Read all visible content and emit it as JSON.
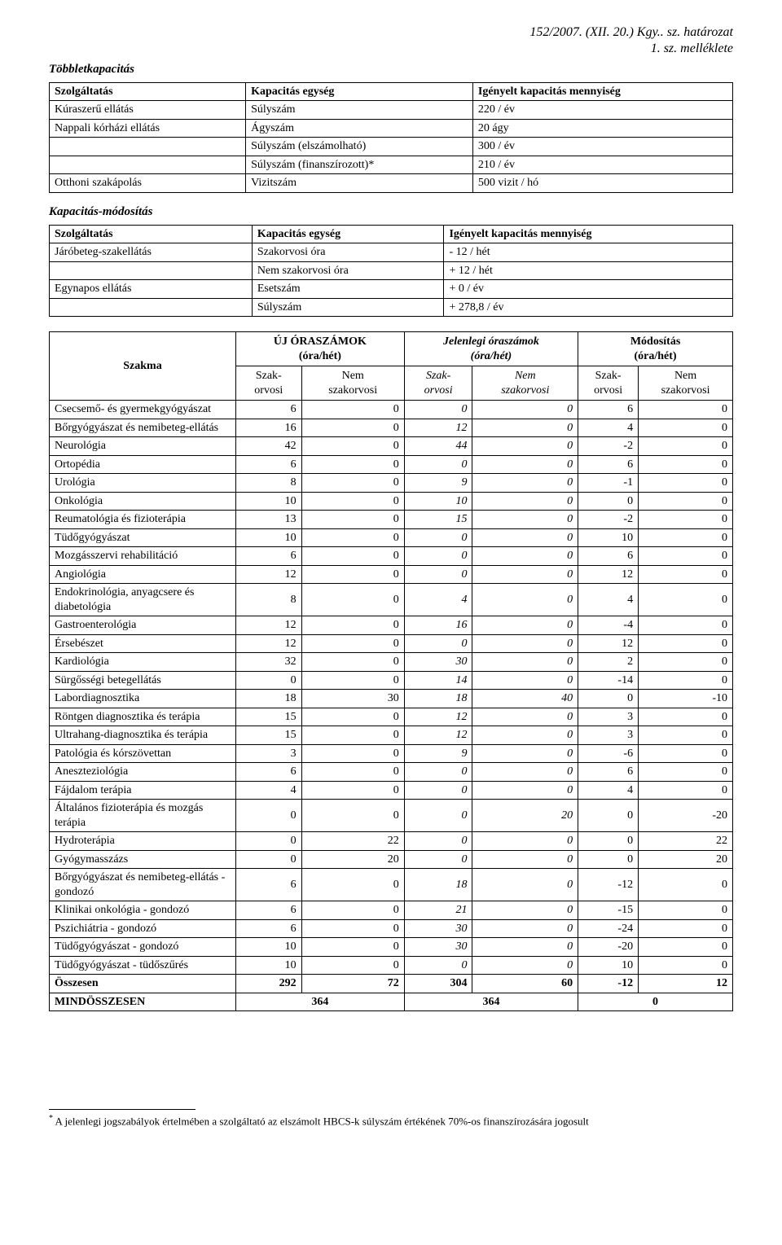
{
  "header": {
    "line1": "152/2007. (XII. 20.) Kgy.. sz. határozat",
    "line2": "1. sz. melléklete"
  },
  "sections": {
    "tobblet_title": "Többletkapacitás",
    "modositas_title": "Kapacitás-módosítás"
  },
  "table1": {
    "headers": [
      "Szolgáltatás",
      "Kapacitás egység",
      "Igényelt kapacitás mennyiség"
    ],
    "rows": [
      [
        "Kúraszerű ellátás",
        "Súlyszám",
        "220 / év"
      ],
      [
        "Nappali kórházi ellátás",
        "Ágyszám",
        "20 ágy"
      ],
      [
        "",
        "Súlyszám (elszámolható)",
        "300 / év"
      ],
      [
        "",
        "Súlyszám (finanszírozott)*",
        "210 / év"
      ],
      [
        "Otthoni szakápolás",
        "Vizitszám",
        "500 vizit / hó"
      ]
    ]
  },
  "table2": {
    "headers": [
      "Szolgáltatás",
      "Kapacitás egység",
      "Igényelt kapacitás mennyiség"
    ],
    "rows": [
      [
        "Járóbeteg-szakellátás",
        "Szakorvosi óra",
        "- 12 / hét"
      ],
      [
        "",
        "Nem szakorvosi óra",
        "+ 12 / hét"
      ],
      [
        "Egynapos ellátás",
        "Esetszám",
        "+ 0 / év"
      ],
      [
        "",
        "Súlyszám",
        "+ 278,8 / év"
      ]
    ]
  },
  "big_table": {
    "col_szakma": "Szakma",
    "group_uj": "ÚJ ÓRASZÁMOK\n(óra/hét)",
    "group_jelenlegi": "Jelenlegi óraszámok\n(óra/hét)",
    "group_mod": "Módosítás\n(óra/hét)",
    "sub_szak": "Szak-\norvosi",
    "sub_nem": "Nem\nszakorvosi",
    "sub_szak_i": "Szak-\norvosi",
    "sub_nem_i": "Nem\nszakorvosi",
    "rows": [
      {
        "n": "Csecsemő- és gyermekgyógyászat",
        "v": [
          6,
          0,
          0,
          0,
          6,
          0
        ]
      },
      {
        "n": "Bőrgyógyászat és nemibeteg-ellátás",
        "v": [
          16,
          0,
          12,
          0,
          4,
          0
        ]
      },
      {
        "n": "Neurológia",
        "v": [
          42,
          0,
          44,
          0,
          -2,
          0
        ]
      },
      {
        "n": "Ortopédia",
        "v": [
          6,
          0,
          0,
          0,
          6,
          0
        ]
      },
      {
        "n": "Urológia",
        "v": [
          8,
          0,
          9,
          0,
          -1,
          0
        ]
      },
      {
        "n": "Onkológia",
        "v": [
          10,
          0,
          10,
          0,
          0,
          0
        ]
      },
      {
        "n": "Reumatológia és fizioterápia",
        "v": [
          13,
          0,
          15,
          0,
          -2,
          0
        ]
      },
      {
        "n": "Tüdőgyógyászat",
        "v": [
          10,
          0,
          0,
          0,
          10,
          0
        ]
      },
      {
        "n": "Mozgásszervi rehabilitáció",
        "v": [
          6,
          0,
          0,
          0,
          6,
          0
        ]
      },
      {
        "n": "Angiológia",
        "v": [
          12,
          0,
          0,
          0,
          12,
          0
        ]
      },
      {
        "n": "Endokrinológia, anyagcsere és diabetológia",
        "v": [
          8,
          0,
          4,
          0,
          4,
          0
        ]
      },
      {
        "n": "Gastroenterológia",
        "v": [
          12,
          0,
          16,
          0,
          -4,
          0
        ]
      },
      {
        "n": "Érsebészet",
        "v": [
          12,
          0,
          0,
          0,
          12,
          0
        ]
      },
      {
        "n": "Kardiológia",
        "v": [
          32,
          0,
          30,
          0,
          2,
          0
        ]
      },
      {
        "n": "Sürgősségi betegellátás",
        "v": [
          0,
          0,
          14,
          0,
          -14,
          0
        ]
      },
      {
        "n": "Labordiagnosztika",
        "v": [
          18,
          30,
          18,
          40,
          0,
          -10
        ]
      },
      {
        "n": "Röntgen diagnosztika és terápia",
        "v": [
          15,
          0,
          12,
          0,
          3,
          0
        ]
      },
      {
        "n": "Ultrahang-diagnosztika és terápia",
        "v": [
          15,
          0,
          12,
          0,
          3,
          0
        ]
      },
      {
        "n": "Patológia és kórszövettan",
        "v": [
          3,
          0,
          9,
          0,
          -6,
          0
        ]
      },
      {
        "n": "Aneszteziológia",
        "v": [
          6,
          0,
          0,
          0,
          6,
          0
        ]
      },
      {
        "n": "Fájdalom terápia",
        "v": [
          4,
          0,
          0,
          0,
          4,
          0
        ]
      },
      {
        "n": "Általános fizioterápia és mozgás terápia",
        "v": [
          0,
          0,
          0,
          20,
          0,
          -20
        ]
      },
      {
        "n": "Hydroterápia",
        "v": [
          0,
          22,
          0,
          0,
          0,
          22
        ]
      },
      {
        "n": "Gyógymasszázs",
        "v": [
          0,
          20,
          0,
          0,
          0,
          20
        ]
      },
      {
        "n": "Bőrgyógyászat és nemibeteg-ellátás - gondozó",
        "v": [
          6,
          0,
          18,
          0,
          -12,
          0
        ]
      },
      {
        "n": "Klinikai onkológia - gondozó",
        "v": [
          6,
          0,
          21,
          0,
          -15,
          0
        ]
      },
      {
        "n": "Pszichiátria - gondozó",
        "v": [
          6,
          0,
          30,
          0,
          -24,
          0
        ]
      },
      {
        "n": "Tüdőgyógyászat - gondozó",
        "v": [
          10,
          0,
          30,
          0,
          -20,
          0
        ]
      },
      {
        "n": "Tüdőgyógyászat - tüdőszűrés",
        "v": [
          10,
          0,
          0,
          0,
          10,
          0
        ]
      }
    ],
    "osszesen": {
      "label": "Összesen",
      "v": [
        292,
        72,
        304,
        60,
        -12,
        12
      ]
    },
    "mind": {
      "label": "MINDÖSSZESEN",
      "v": [
        364,
        364,
        0
      ]
    }
  },
  "footnote": {
    "marker": "*",
    "text": "A jelenlegi jogszabályok értelmében a szolgáltató az elszámolt HBCS-k súlyszám értékének 70%-os finanszírozására jogosult"
  }
}
